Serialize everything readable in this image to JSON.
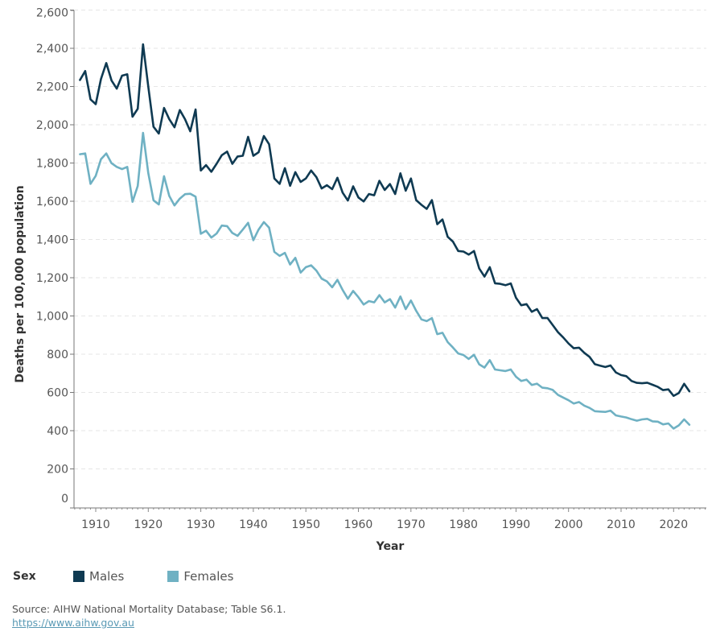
{
  "chart_data": {
    "type": "line",
    "title": "",
    "xlabel": "Year",
    "ylabel": "Deaths per 100,000 population",
    "xlim": [
      1906,
      2026
    ],
    "ylim": [
      0,
      2650
    ],
    "x_ticks": [
      1910,
      1920,
      1930,
      1940,
      1950,
      1960,
      1970,
      1980,
      1990,
      2000,
      2010,
      2020
    ],
    "x_tick_labels": [
      "1910",
      "1920",
      "1930",
      "1940",
      "1950",
      "1960",
      "1970",
      "1980",
      "1990",
      "2000",
      "2010",
      "2020"
    ],
    "y_ticks": [
      0,
      200,
      400,
      600,
      800,
      1000,
      1200,
      1400,
      1600,
      1800,
      2000,
      2200,
      2400,
      2600
    ],
    "y_tick_labels": [
      "0",
      "200",
      "400",
      "600",
      "800",
      "1,000",
      "1,200",
      "1,400",
      "1,600",
      "1,800",
      "2,000",
      "2,200",
      "2,400",
      "2,600"
    ],
    "grid": true,
    "legend_title": "Sex",
    "legend_position": "bottom-left",
    "x_start": 1907,
    "series": [
      {
        "name": "Males",
        "color": "#0f3a52",
        "values": [
          2234,
          2281,
          2133,
          2108,
          2239,
          2323,
          2232,
          2189,
          2257,
          2264,
          2042,
          2084,
          2421,
          2200,
          1990,
          1954,
          2088,
          2029,
          1987,
          2077,
          2029,
          1966,
          2080,
          1761,
          1789,
          1754,
          1796,
          1841,
          1860,
          1796,
          1834,
          1838,
          1937,
          1838,
          1856,
          1941,
          1898,
          1719,
          1691,
          1773,
          1681,
          1752,
          1701,
          1719,
          1761,
          1726,
          1667,
          1684,
          1663,
          1723,
          1645,
          1604,
          1678,
          1620,
          1599,
          1638,
          1631,
          1707,
          1659,
          1690,
          1638,
          1746,
          1655,
          1719,
          1606,
          1581,
          1560,
          1606,
          1480,
          1505,
          1414,
          1389,
          1340,
          1337,
          1321,
          1340,
          1248,
          1206,
          1255,
          1171,
          1168,
          1161,
          1170,
          1095,
          1056,
          1062,
          1022,
          1036,
          989,
          989,
          952,
          915,
          887,
          856,
          831,
          834,
          807,
          786,
          748,
          740,
          733,
          741,
          705,
          691,
          685,
          660,
          650,
          648,
          651,
          640,
          629,
          612,
          616,
          582,
          597,
          645,
          606
        ]
      },
      {
        "name": "Females",
        "color": "#6fb1c3",
        "values": [
          1846,
          1850,
          1691,
          1733,
          1820,
          1850,
          1799,
          1780,
          1768,
          1780,
          1597,
          1680,
          1958,
          1748,
          1605,
          1583,
          1731,
          1628,
          1578,
          1614,
          1637,
          1639,
          1624,
          1430,
          1446,
          1410,
          1431,
          1473,
          1470,
          1434,
          1419,
          1452,
          1487,
          1396,
          1452,
          1491,
          1462,
          1335,
          1314,
          1330,
          1269,
          1304,
          1227,
          1255,
          1265,
          1237,
          1195,
          1181,
          1150,
          1189,
          1136,
          1090,
          1131,
          1098,
          1060,
          1078,
          1071,
          1109,
          1071,
          1088,
          1044,
          1102,
          1036,
          1081,
          1027,
          982,
          973,
          989,
          905,
          912,
          863,
          835,
          804,
          796,
          775,
          797,
          747,
          730,
          769,
          720,
          716,
          712,
          720,
          682,
          660,
          667,
          639,
          646,
          625,
          622,
          613,
          587,
          573,
          559,
          542,
          550,
          531,
          519,
          502,
          500,
          498,
          505,
          480,
          474,
          469,
          460,
          452,
          459,
          462,
          449,
          447,
          433,
          438,
          411,
          428,
          459,
          431
        ]
      }
    ]
  },
  "legend": {
    "title": "Sex",
    "items": [
      {
        "label": "Males",
        "color": "#0f3a52"
      },
      {
        "label": "Females",
        "color": "#6fb1c3"
      }
    ]
  },
  "source": {
    "text": "Source: AIHW National Mortality Database; Table S6.1.",
    "link": "https://www.aihw.gov.au"
  }
}
